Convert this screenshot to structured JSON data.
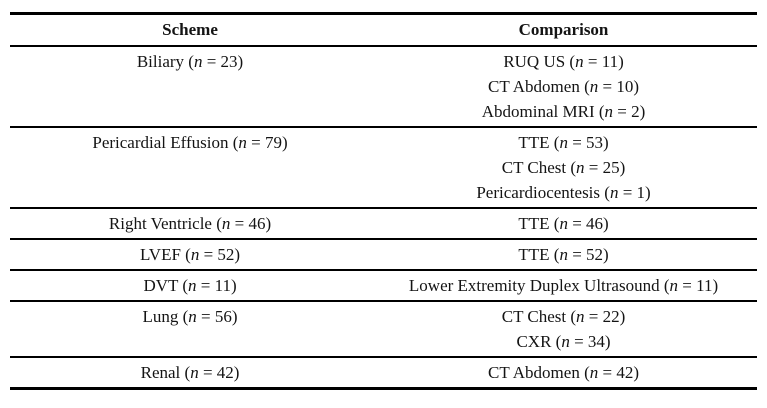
{
  "page": {
    "background": "#ffffff",
    "text_color": "#141414",
    "rule_color": "#000000"
  },
  "table": {
    "columns": [
      {
        "key": "scheme",
        "label": "Scheme"
      },
      {
        "key": "comparison",
        "label": "Comparison"
      }
    ],
    "n_symbol": "n",
    "rows": [
      {
        "scheme": {
          "label": "Biliary",
          "n": 23
        },
        "comparisons": [
          {
            "label": "RUQ US",
            "n": 11
          },
          {
            "label": "CT Abdomen",
            "n": 10
          },
          {
            "label": "Abdominal MRI",
            "n": 2
          }
        ]
      },
      {
        "scheme": {
          "label": "Pericardial Effusion",
          "n": 79
        },
        "comparisons": [
          {
            "label": "TTE",
            "n": 53
          },
          {
            "label": "CT Chest",
            "n": 25
          },
          {
            "label": "Pericardiocentesis",
            "n": 1
          }
        ]
      },
      {
        "scheme": {
          "label": "Right Ventricle",
          "n": 46
        },
        "comparisons": [
          {
            "label": "TTE",
            "n": 46
          }
        ]
      },
      {
        "scheme": {
          "label": "LVEF",
          "n": 52
        },
        "comparisons": [
          {
            "label": "TTE",
            "n": 52
          }
        ]
      },
      {
        "scheme": {
          "label": "DVT",
          "n": 11
        },
        "comparisons": [
          {
            "label": "Lower Extremity Duplex Ultrasound",
            "n": 11
          }
        ]
      },
      {
        "scheme": {
          "label": "Lung",
          "n": 56
        },
        "comparisons": [
          {
            "label": "CT Chest",
            "n": 22
          },
          {
            "label": "CXR",
            "n": 34
          }
        ]
      },
      {
        "scheme": {
          "label": "Renal",
          "n": 42
        },
        "comparisons": [
          {
            "label": "CT Abdomen",
            "n": 42
          }
        ]
      }
    ]
  }
}
